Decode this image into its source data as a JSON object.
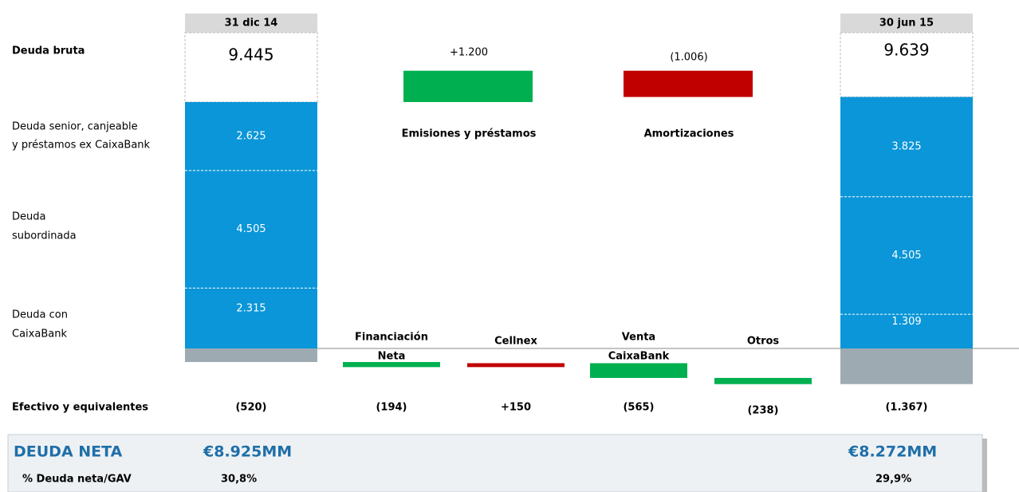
{
  "headers": {
    "start": "31 dic 14",
    "end": "30 jun 15"
  },
  "row_labels": {
    "gross_debt": "Deuda bruta",
    "senior": [
      "Deuda senior, canjeable",
      "y préstamos ex CaixaBank"
    ],
    "subordinated": [
      "Deuda",
      "subordinada"
    ],
    "caixabank": [
      "Deuda con",
      "CaixaBank"
    ],
    "cash": "Efectivo y equivalentes"
  },
  "start": {
    "gross": {
      "value": 9445,
      "label": "9.445"
    },
    "senior": {
      "value": 2625,
      "label": "2.625"
    },
    "subordinated": {
      "value": 4505,
      "label": "4.505"
    },
    "caixabank": {
      "value": 2315,
      "label": "2.315"
    },
    "cash": {
      "value": -520,
      "label": "(520)"
    }
  },
  "end": {
    "gross": {
      "value": 9639,
      "label": "9.639"
    },
    "senior": {
      "value": 3825,
      "label": "3.825"
    },
    "subordinated": {
      "value": 4505,
      "label": "4.505"
    },
    "caixabank": {
      "value": 1309,
      "label": "1.309"
    },
    "cash": {
      "value": -1367,
      "label": "(1.367)"
    }
  },
  "debt_flows": [
    {
      "name": "Emisiones y préstamos",
      "value": 1200,
      "label": "+1.200",
      "color": "#00b050"
    },
    {
      "name": "Amortizaciones",
      "value": -1006,
      "label": "(1.006)",
      "color": "#c00000"
    }
  ],
  "cash_flows": [
    {
      "name": [
        "Financiación",
        "Neta"
      ],
      "value": -194,
      "label": "(194)",
      "color": "#00b050"
    },
    {
      "name": [
        "Cellnex"
      ],
      "value": 150,
      "label": "+150",
      "color": "#c00000"
    },
    {
      "name": [
        "Venta",
        "CaixaBank"
      ],
      "value": -565,
      "label": "(565)",
      "color": "#00b050"
    },
    {
      "name": [
        "Otros"
      ],
      "value": -238,
      "label": "(238)",
      "color": "#00b050"
    }
  ],
  "net_debt": {
    "title": "DEUDA NETA",
    "start": {
      "value": 8925,
      "label": "€8.925MM"
    },
    "end": {
      "value": 8272,
      "label": "€8.272MM"
    }
  },
  "ltv": {
    "title": "% Deuda neta/GAV",
    "start": {
      "value": 30.8,
      "label": "30,8%"
    },
    "end": {
      "value": 29.9,
      "label": "29,9%"
    }
  }
}
